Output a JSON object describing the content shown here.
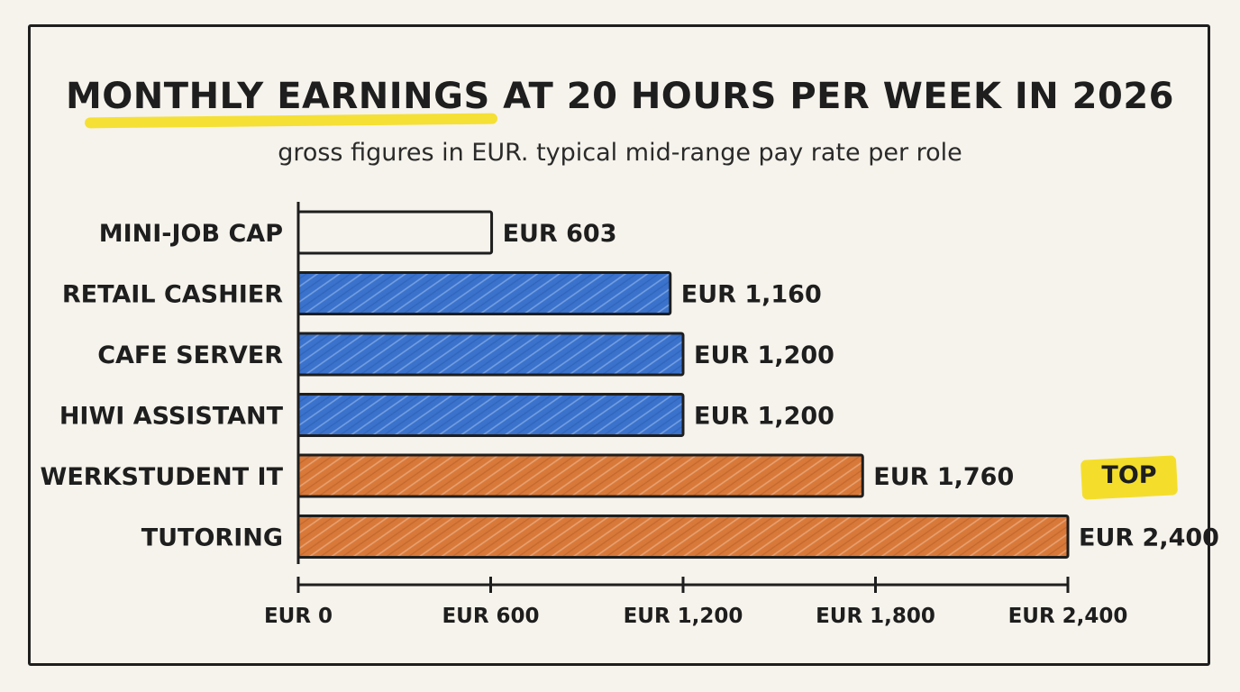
{
  "title": "MONTHLY EARNINGS AT 20 HOURS PER WEEK IN 2026",
  "subtitle": "gross figures in EUR. typical mid-range pay rate per role",
  "badge": "TOP",
  "colors": {
    "background": "#f6f3ec",
    "outline": "#1e1e1e",
    "blue": "#3a72cc",
    "orange": "#d8793a",
    "highlight": "#f4de2b"
  },
  "chart_data": {
    "type": "bar",
    "orientation": "horizontal",
    "title": "MONTHLY EARNINGS AT 20 HOURS PER WEEK IN 2026",
    "subtitle": "gross figures in EUR. typical mid-range pay rate per role",
    "categories": [
      "MINI-JOB CAP",
      "RETAIL CASHIER",
      "CAFE SERVER",
      "HIWI ASSISTANT",
      "WERKSTUDENT IT",
      "TUTORING"
    ],
    "values": [
      603,
      1160,
      1200,
      1200,
      1760,
      2400
    ],
    "value_labels": [
      "EUR 603",
      "EUR 1,160",
      "EUR 1,200",
      "EUR 1,200",
      "EUR 1,760",
      "EUR 2,400"
    ],
    "bar_colors": [
      "none",
      "blue",
      "blue",
      "blue",
      "orange",
      "orange"
    ],
    "xlim": [
      0,
      2400
    ],
    "xticks": [
      0,
      600,
      1200,
      1800,
      2400
    ],
    "xtick_labels": [
      "EUR 0",
      "EUR 600",
      "EUR 1,200",
      "EUR 1,800",
      "EUR 2,400"
    ],
    "xlabel": "",
    "ylabel": "",
    "grid": false,
    "annotation": "TOP"
  }
}
